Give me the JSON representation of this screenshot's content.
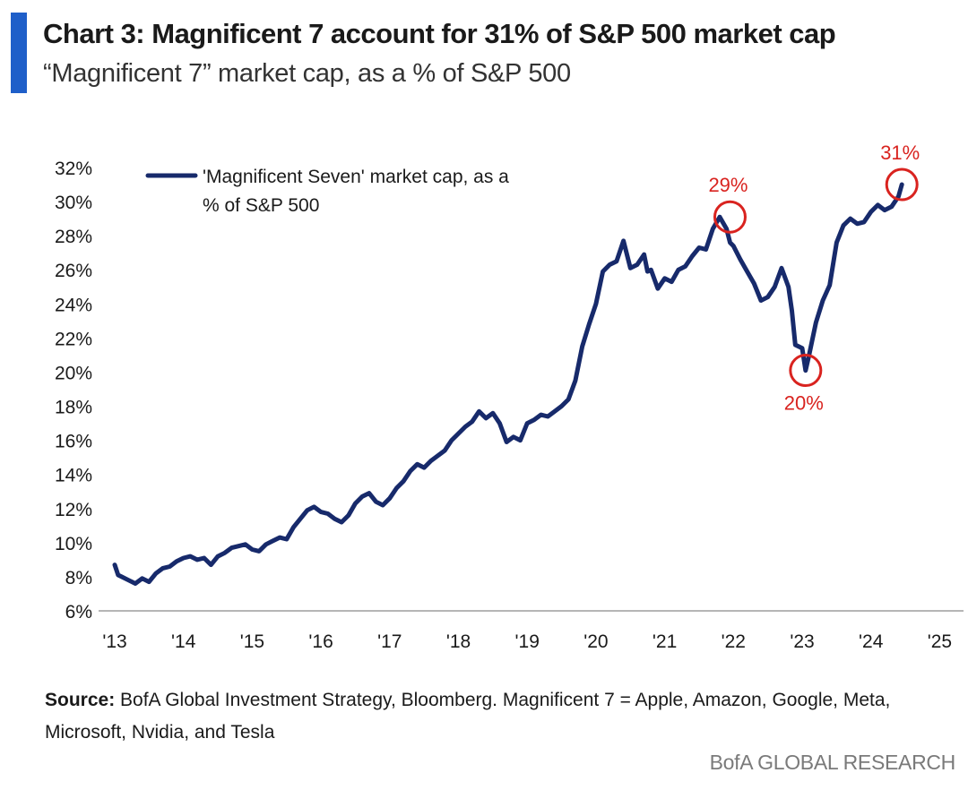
{
  "header": {
    "title": "Chart 3: Magnificent 7 account for 31% of S&P 500 market cap",
    "subtitle": "“Magnificent 7” market cap, as a % of S&P 500"
  },
  "source": {
    "label": "Source:",
    "text": " BofA Global Investment Strategy, Bloomberg. Magnificent 7 = Apple, Amazon, Google, Meta, Microsoft, Nvidia, and Tesla"
  },
  "brand": "BofA GLOBAL RESEARCH",
  "colors": {
    "accent": "#1f5fc9",
    "line": "#172a6b",
    "annotation": "#d9231f"
  },
  "chart_data": {
    "type": "line",
    "title": "",
    "xlabel": "",
    "ylabel": "",
    "xlim": [
      2013,
      2025.3
    ],
    "ylim": [
      6,
      32
    ],
    "x_ticks": [
      2013,
      2014,
      2015,
      2016,
      2017,
      2018,
      2019,
      2020,
      2021,
      2022,
      2023,
      2024,
      2025
    ],
    "x_tick_labels": [
      "'13",
      "'14",
      "'15",
      "'16",
      "'17",
      "'18",
      "'19",
      "'20",
      "'21",
      "'22",
      "'23",
      "'24",
      "'25"
    ],
    "y_ticks": [
      6,
      8,
      10,
      12,
      14,
      16,
      18,
      20,
      22,
      24,
      26,
      28,
      30,
      32
    ],
    "y_tick_labels": [
      "6%",
      "8%",
      "10%",
      "12%",
      "14%",
      "16%",
      "18%",
      "20%",
      "22%",
      "24%",
      "26%",
      "28%",
      "30%",
      "32%"
    ],
    "grid": false,
    "legend": {
      "position": "top-left",
      "lines": [
        "'Magnificent Seven' market cap, as a",
        "% of S&P 500"
      ]
    },
    "series": [
      {
        "name": "'Magnificent Seven' market cap, as a % of S&P 500",
        "x": [
          2013.0,
          2013.05,
          2013.1,
          2013.2,
          2013.3,
          2013.4,
          2013.5,
          2013.6,
          2013.7,
          2013.8,
          2013.9,
          2014.0,
          2014.1,
          2014.2,
          2014.3,
          2014.4,
          2014.5,
          2014.6,
          2014.7,
          2014.8,
          2014.9,
          2015.0,
          2015.1,
          2015.2,
          2015.3,
          2015.4,
          2015.5,
          2015.6,
          2015.7,
          2015.8,
          2015.9,
          2016.0,
          2016.1,
          2016.2,
          2016.3,
          2016.4,
          2016.5,
          2016.6,
          2016.7,
          2016.8,
          2016.9,
          2017.0,
          2017.1,
          2017.2,
          2017.3,
          2017.4,
          2017.5,
          2017.6,
          2017.7,
          2017.8,
          2017.9,
          2018.0,
          2018.1,
          2018.2,
          2018.3,
          2018.4,
          2018.5,
          2018.6,
          2018.7,
          2018.8,
          2018.9,
          2019.0,
          2019.1,
          2019.2,
          2019.3,
          2019.4,
          2019.5,
          2019.6,
          2019.7,
          2019.8,
          2019.9,
          2020.0,
          2020.1,
          2020.2,
          2020.3,
          2020.4,
          2020.5,
          2020.6,
          2020.7,
          2020.75,
          2020.8,
          2020.9,
          2021.0,
          2021.1,
          2021.2,
          2021.3,
          2021.4,
          2021.5,
          2021.6,
          2021.7,
          2021.8,
          2021.9,
          2021.95,
          2022.0,
          2022.1,
          2022.2,
          2022.3,
          2022.4,
          2022.5,
          2022.6,
          2022.7,
          2022.8,
          2022.85,
          2022.9,
          2023.0,
          2023.05,
          2023.1,
          2023.2,
          2023.3,
          2023.4,
          2023.5,
          2023.6,
          2023.7,
          2023.8,
          2023.9,
          2024.0,
          2024.1,
          2024.2,
          2024.3,
          2024.4,
          2024.45
        ],
        "values": [
          8.7,
          8.1,
          8.0,
          7.8,
          7.6,
          7.9,
          7.7,
          8.2,
          8.5,
          8.6,
          8.9,
          9.1,
          9.2,
          9.0,
          9.1,
          8.7,
          9.2,
          9.4,
          9.7,
          9.8,
          9.9,
          9.6,
          9.5,
          9.9,
          10.1,
          10.3,
          10.2,
          10.9,
          11.4,
          11.9,
          12.1,
          11.8,
          11.7,
          11.4,
          11.2,
          11.6,
          12.3,
          12.7,
          12.9,
          12.4,
          12.2,
          12.6,
          13.2,
          13.6,
          14.2,
          14.6,
          14.4,
          14.8,
          15.1,
          15.4,
          16.0,
          16.4,
          16.8,
          17.1,
          17.7,
          17.3,
          17.6,
          17.0,
          15.9,
          16.2,
          16.0,
          17.0,
          17.2,
          17.5,
          17.4,
          17.7,
          18.0,
          18.4,
          19.5,
          21.5,
          22.8,
          24.0,
          25.9,
          26.3,
          26.5,
          27.7,
          26.1,
          26.3,
          26.9,
          25.9,
          26.0,
          24.9,
          25.5,
          25.3,
          26.0,
          26.2,
          26.8,
          27.3,
          27.2,
          28.4,
          29.1,
          28.4,
          27.6,
          27.4,
          26.6,
          25.9,
          25.2,
          24.2,
          24.4,
          25.0,
          26.1,
          25.0,
          23.6,
          21.6,
          21.4,
          20.1,
          21.0,
          22.9,
          24.2,
          25.1,
          27.6,
          28.6,
          29.0,
          28.7,
          28.8,
          29.4,
          29.8,
          29.5,
          29.7,
          30.3,
          31.0
        ]
      }
    ],
    "annotations": [
      {
        "label": "29%",
        "x": 2021.95,
        "y": 29.1,
        "label_position": "above"
      },
      {
        "label": "20%",
        "x": 2023.05,
        "y": 20.1,
        "label_position": "below"
      },
      {
        "label": "31%",
        "x": 2024.45,
        "y": 31.0,
        "label_position": "above"
      }
    ]
  }
}
